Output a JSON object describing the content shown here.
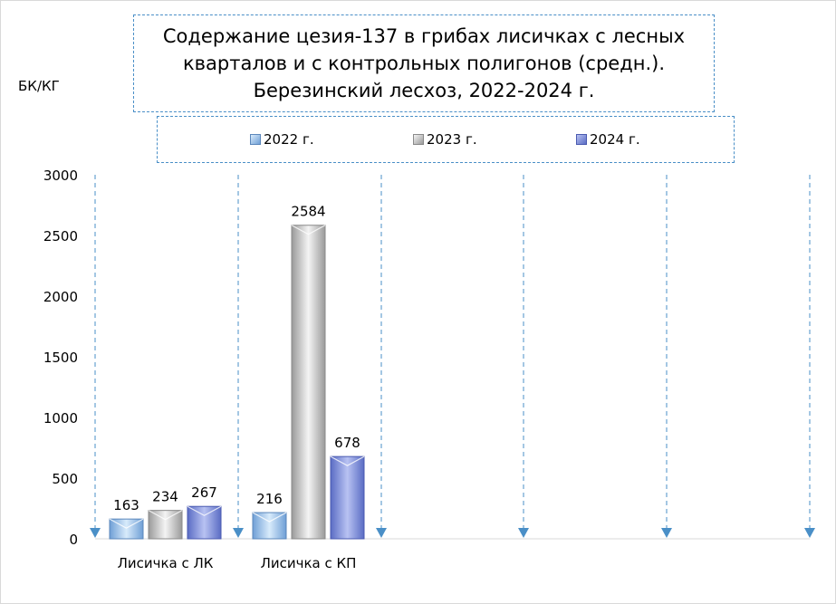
{
  "chart_data": {
    "type": "bar",
    "title": "Содержание цезия-137 в грибах лисичках с лесных\nкварталов и с контрольных полигонов (средн.).\nБерезинский лесхоз, 2022-2024 г.",
    "ylabel": "БК/КГ",
    "xlabel": "",
    "categories": [
      "Лисичка с ЛК",
      "Лисичка с КП"
    ],
    "series": [
      {
        "name": "2022 г.",
        "values": [
          163,
          216
        ],
        "color": "#9ec6ee"
      },
      {
        "name": "2023 г.",
        "values": [
          234,
          2584
        ],
        "color": "#c8c8c8"
      },
      {
        "name": "2024 г.",
        "values": [
          267,
          678
        ],
        "color": "#8f9fe0"
      }
    ],
    "ylim": [
      0,
      3000
    ],
    "yticks": [
      "0",
      "500",
      "1000",
      "1500",
      "2000",
      "2500",
      "3000"
    ],
    "legend_position": "top",
    "grid": "vertical dashed with arrows",
    "data_labels": true
  }
}
